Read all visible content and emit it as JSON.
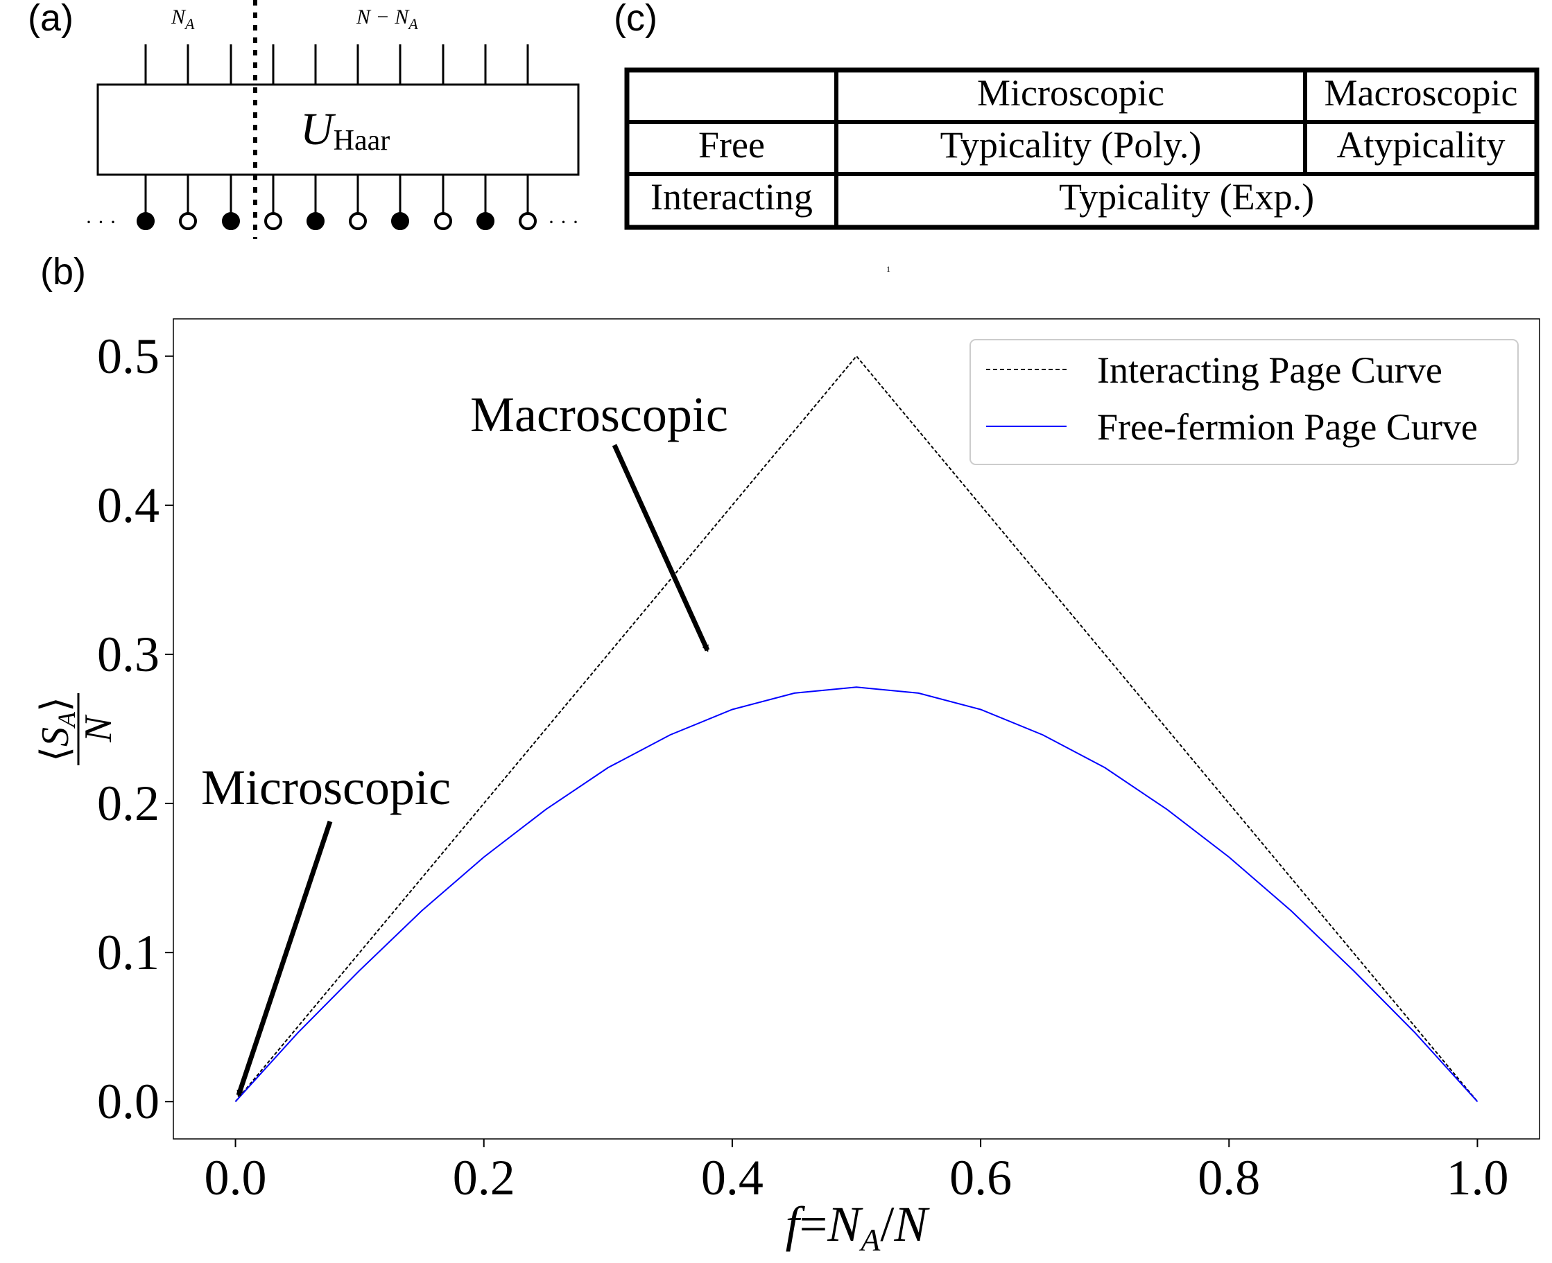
{
  "panels": {
    "a": "(a)",
    "b": "(b)",
    "c": "(c)"
  },
  "circuit": {
    "top_left_label": "N",
    "top_left_sub": "A",
    "top_right_label": "N − N",
    "top_right_sub": "A",
    "gate_label": "U",
    "gate_sub": "Haar",
    "dots_left": "· · ·",
    "dots_right": "· · ·",
    "site_states": [
      "filled",
      "empty",
      "filled",
      "empty",
      "filled",
      "empty",
      "filled",
      "empty",
      "filled",
      "empty"
    ]
  },
  "table": {
    "header": [
      "",
      "Microscopic",
      "Macroscopic"
    ],
    "rows": [
      {
        "label": "Free",
        "microscopic": "Typicality (Poly.)",
        "macroscopic": "Atypicality"
      },
      {
        "label": "Interacting",
        "merged": "Typicality (Exp.)"
      }
    ]
  },
  "stray_mark": "1",
  "chart_data": {
    "type": "line",
    "xlabel": "f = N_A/N",
    "ylabel": "⟨S_A⟩/N",
    "xlim": [
      -0.05,
      1.05
    ],
    "ylim": [
      -0.025,
      0.525
    ],
    "xticks": [
      0.0,
      0.2,
      0.4,
      0.6,
      0.8,
      1.0
    ],
    "xtick_labels": [
      "0.0",
      "0.2",
      "0.4",
      "0.6",
      "0.8",
      "1.0"
    ],
    "yticks": [
      0.0,
      0.1,
      0.2,
      0.3,
      0.4,
      0.5
    ],
    "ytick_labels": [
      "0.0",
      "0.1",
      "0.2",
      "0.3",
      "0.4",
      "0.5"
    ],
    "grid": false,
    "legend_position": "top-right",
    "series": [
      {
        "name": "Interacting Page Curve",
        "style": "dashed",
        "color": "#000000",
        "x": [
          0.0,
          0.5,
          1.0
        ],
        "y": [
          0.0,
          0.5,
          0.0
        ]
      },
      {
        "name": "Free-fermion Page Curve",
        "style": "solid",
        "color": "#0000ff",
        "x": [
          0.0,
          0.05,
          0.1,
          0.15,
          0.2,
          0.25,
          0.3,
          0.35,
          0.4,
          0.45,
          0.5,
          0.55,
          0.6,
          0.65,
          0.7,
          0.75,
          0.8,
          0.85,
          0.9,
          0.95,
          1.0
        ],
        "y": [
          0.0,
          0.046,
          0.088,
          0.128,
          0.164,
          0.196,
          0.224,
          0.246,
          0.263,
          0.274,
          0.278,
          0.274,
          0.263,
          0.246,
          0.224,
          0.196,
          0.164,
          0.128,
          0.088,
          0.046,
          0.0
        ]
      }
    ],
    "annotations": [
      {
        "text": "Macroscopic",
        "points_to": [
          0.38,
          0.3
        ]
      },
      {
        "text": "Microscopic",
        "points_to": [
          0.0,
          0.0
        ]
      }
    ]
  }
}
